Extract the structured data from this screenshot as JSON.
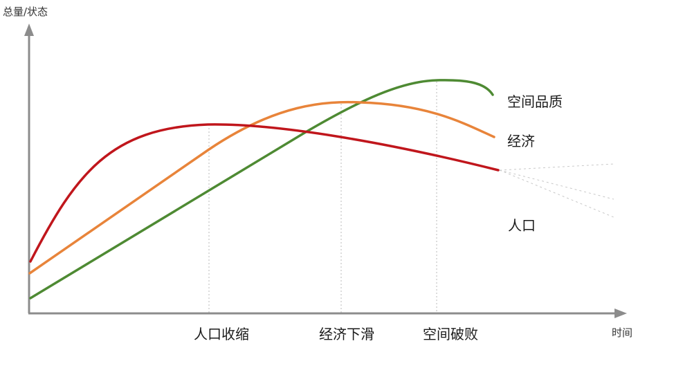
{
  "diagram": {
    "y_axis_label": "总量/状态",
    "x_axis_label": "时间",
    "milestones": [
      {
        "label": "人口收缩"
      },
      {
        "label": "经济下滑"
      },
      {
        "label": "空间破败"
      }
    ],
    "series": [
      {
        "name": "空间品质",
        "color": "#4e8a33"
      },
      {
        "name": "经济",
        "color": "#e8843a"
      },
      {
        "name": "人口",
        "color": "#c0161c"
      }
    ],
    "guide_color": "#b9b9b9",
    "axis_color": "#8c8c8c"
  }
}
